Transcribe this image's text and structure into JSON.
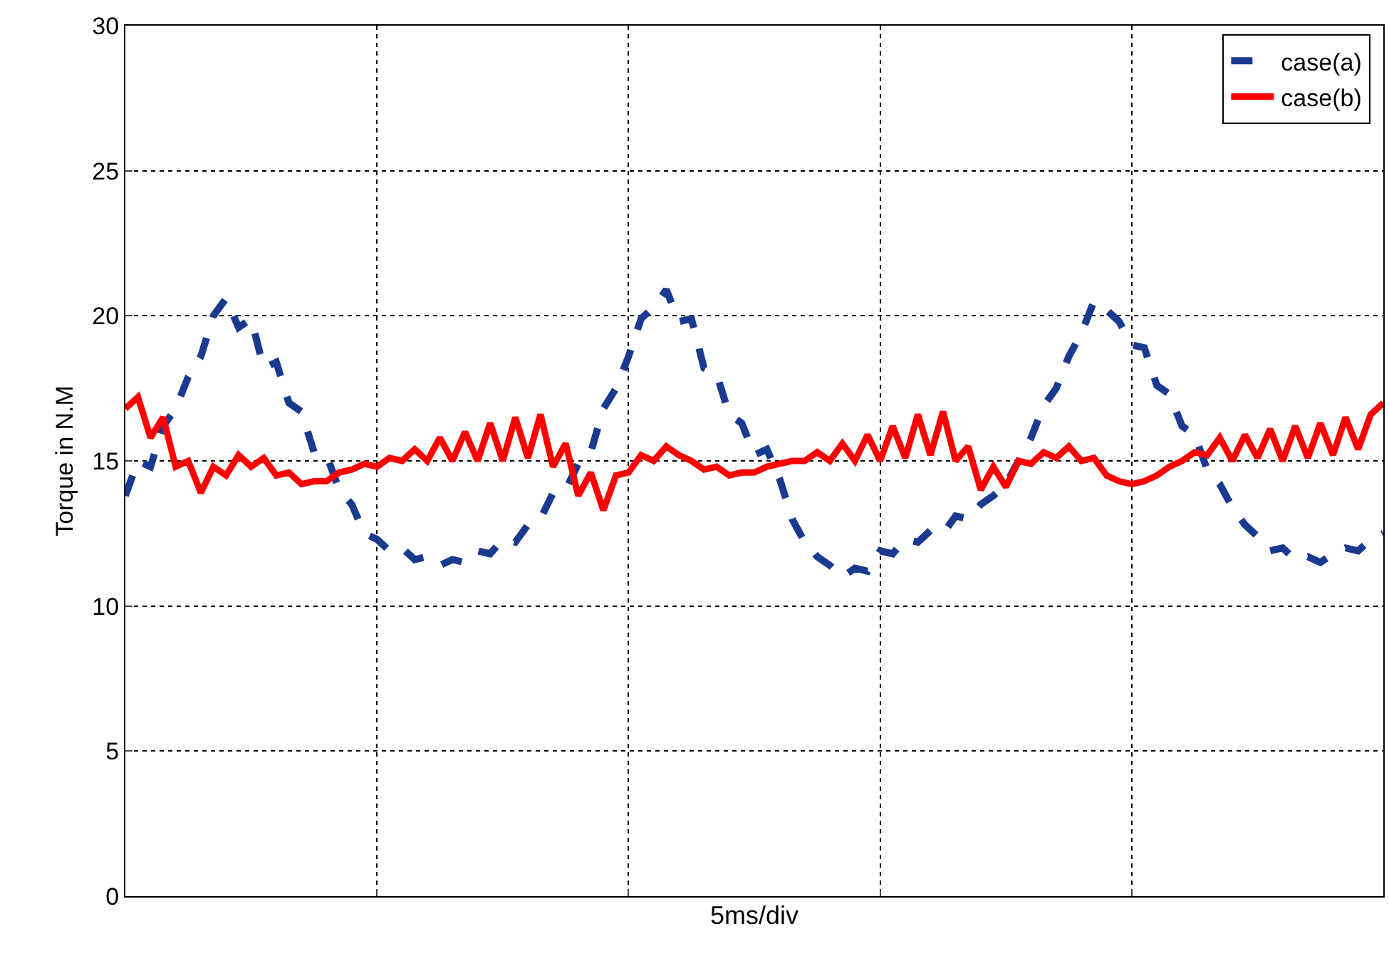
{
  "chart_data": {
    "type": "line",
    "xlabel": "5ms/div",
    "ylabel": "Torque in N.M",
    "categories": [
      null,
      null,
      null,
      null,
      null,
      null,
      null,
      null,
      null,
      null,
      null,
      null,
      null,
      null,
      null,
      null,
      null,
      null,
      null,
      null,
      null,
      null,
      null,
      null,
      null,
      null,
      null,
      null,
      null,
      null,
      null,
      null,
      null,
      null,
      null,
      null,
      null,
      null,
      null,
      null,
      null,
      null,
      null,
      null,
      null,
      null,
      null,
      null,
      null,
      null,
      null,
      null,
      null,
      null,
      null,
      null,
      null,
      null,
      null,
      null,
      null,
      null,
      null,
      null,
      null,
      null,
      null,
      null,
      null,
      null,
      null,
      null,
      null,
      null,
      null,
      null,
      null,
      null,
      null,
      null,
      null,
      null,
      null,
      null,
      null,
      null,
      null,
      null,
      null,
      null,
      null,
      null,
      null,
      null,
      null,
      null,
      null,
      null,
      null,
      null,
      null
    ],
    "series": [
      {
        "name": "case(a)",
        "color": "#1a3a8f",
        "line_style": "dashed",
        "values": [
          13.8,
          15.0,
          14.8,
          16.2,
          16.8,
          17.9,
          18.6,
          20.0,
          20.6,
          19.6,
          19.9,
          18.2,
          18.4,
          17.0,
          16.7,
          15.3,
          15.2,
          14.0,
          13.5,
          12.5,
          12.3,
          11.9,
          12.0,
          11.6,
          11.7,
          11.4,
          11.6,
          11.5,
          11.9,
          11.8,
          12.3,
          12.2,
          12.8,
          13.0,
          13.9,
          14.0,
          14.9,
          15.3,
          16.8,
          17.5,
          18.6,
          19.9,
          20.3,
          20.9,
          19.8,
          19.9,
          18.2,
          18.0,
          16.6,
          16.3,
          15.2,
          15.4,
          14.4,
          13.0,
          12.2,
          11.7,
          11.4,
          11.0,
          11.3,
          11.2,
          11.9,
          11.8,
          12.3,
          12.2,
          12.6,
          12.5,
          13.1,
          13.0,
          13.5,
          13.8,
          14.2,
          15.0,
          15.8,
          16.9,
          17.5,
          18.6,
          19.4,
          20.5,
          20.2,
          19.8,
          19.0,
          18.9,
          17.6,
          17.3,
          16.2,
          15.9,
          14.7,
          14.2,
          13.4,
          12.8,
          12.4,
          11.9,
          12.0,
          11.6,
          11.7,
          11.5,
          11.8,
          12.0,
          11.9,
          12.3,
          12.5
        ]
      },
      {
        "name": "case(b)",
        "color": "#ff0000",
        "line_style": "solid",
        "values": [
          16.8,
          17.2,
          15.8,
          16.5,
          14.8,
          15.0,
          13.9,
          14.8,
          14.5,
          15.2,
          14.8,
          15.1,
          14.5,
          14.6,
          14.2,
          14.3,
          14.3,
          14.6,
          14.7,
          14.9,
          14.8,
          15.1,
          15.0,
          15.4,
          15.0,
          15.8,
          15.0,
          16.0,
          15.0,
          16.3,
          15.0,
          16.5,
          15.1,
          16.6,
          14.8,
          15.6,
          13.8,
          14.6,
          13.3,
          14.5,
          14.6,
          15.2,
          15.0,
          15.5,
          15.2,
          15.0,
          14.7,
          14.8,
          14.5,
          14.6,
          14.6,
          14.8,
          14.9,
          15.0,
          15.0,
          15.3,
          15.0,
          15.6,
          15.0,
          15.9,
          15.0,
          16.2,
          15.1,
          16.6,
          15.2,
          16.7,
          15.0,
          15.5,
          14.0,
          14.8,
          14.1,
          15.0,
          14.9,
          15.3,
          15.1,
          15.5,
          15.0,
          15.1,
          14.5,
          14.3,
          14.2,
          14.3,
          14.5,
          14.8,
          15.0,
          15.3,
          15.2,
          15.8,
          15.0,
          15.9,
          15.1,
          16.1,
          15.0,
          16.2,
          15.1,
          16.3,
          15.2,
          16.5,
          15.4,
          16.6,
          17.0
        ]
      }
    ],
    "ylim": [
      0,
      30
    ],
    "yticks": [
      0,
      5,
      10,
      15,
      20,
      25,
      30
    ],
    "tick_labels": "y",
    "grid": true,
    "legend": "top right",
    "marker": "none"
  }
}
